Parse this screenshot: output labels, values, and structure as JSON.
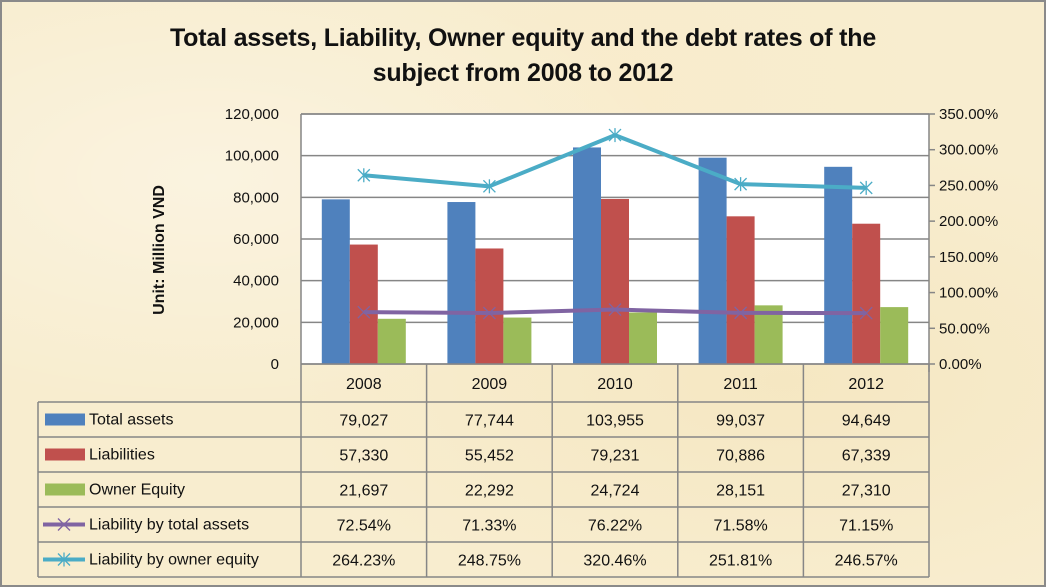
{
  "chart_data": {
    "type": "bar",
    "title_line1": "Total assets, Liability, Owner equity and the debt rates of the",
    "title_line2": "subject from 2008 to 2012",
    "ylabel": "Unit: Million VND",
    "y2label": "",
    "categories": [
      "2008",
      "2009",
      "2010",
      "2011",
      "2012"
    ],
    "ylim": [
      0,
      120000
    ],
    "y_ticks": [
      "0",
      "20,000",
      "40,000",
      "60,000",
      "80,000",
      "100,000",
      "120,000"
    ],
    "y2lim": [
      0,
      350
    ],
    "y2_ticks": [
      "0.00%",
      "50.00%",
      "100.00%",
      "150.00%",
      "200.00%",
      "250.00%",
      "300.00%",
      "350.00%"
    ],
    "grid": true,
    "legend_placement": "data-table",
    "series": [
      {
        "name": "Total assets",
        "kind": "bar",
        "axis": "left",
        "color": "#4f81bd",
        "values": [
          79027,
          77744,
          103955,
          99037,
          94649
        ],
        "labels": [
          "79,027",
          "77,744",
          "103,955",
          "99,037",
          "94,649"
        ]
      },
      {
        "name": "Liabilities",
        "kind": "bar",
        "axis": "left",
        "color": "#c0504d",
        "values": [
          57330,
          55452,
          79231,
          70886,
          67339
        ],
        "labels": [
          "57,330",
          "55,452",
          "79,231",
          "70,886",
          "67,339"
        ]
      },
      {
        "name": "Owner Equity",
        "kind": "bar",
        "axis": "left",
        "color": "#9bbb59",
        "values": [
          21697,
          22292,
          24724,
          28151,
          27310
        ],
        "labels": [
          "21,697",
          "22,292",
          "24,724",
          "28,151",
          "27,310"
        ]
      },
      {
        "name": "Liability by total assets",
        "kind": "line",
        "axis": "right",
        "color": "#8064a2",
        "marker": "x",
        "values": [
          72.54,
          71.33,
          76.22,
          71.58,
          71.15
        ],
        "labels": [
          "72.54%",
          "71.33%",
          "76.22%",
          "71.58%",
          "71.15%"
        ]
      },
      {
        "name": "Liability by owner equity",
        "kind": "line",
        "axis": "right",
        "color": "#4bacc6",
        "marker": "star",
        "values": [
          264.23,
          248.75,
          320.46,
          251.81,
          246.57
        ],
        "labels": [
          "264.23%",
          "248.75%",
          "320.46%",
          "251.81%",
          "246.57%"
        ]
      }
    ]
  }
}
